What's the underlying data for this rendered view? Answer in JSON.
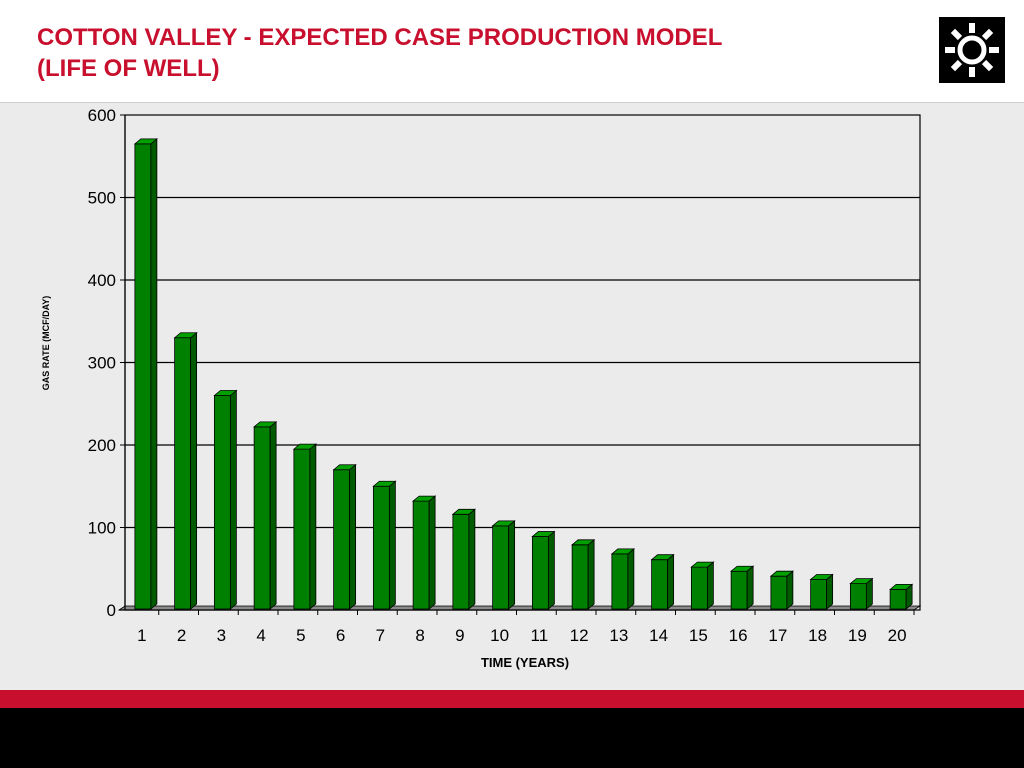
{
  "header": {
    "title_line1": "COTTON VALLEY - EXPECTED CASE PRODUCTION MODEL",
    "title_line2": "(LIFE OF WELL)",
    "logo_icon": "sun-gear-icon"
  },
  "colors": {
    "title": "#c8102e",
    "bar_front": "#008000",
    "bar_side": "#005a00",
    "bar_top": "#00a000",
    "panel_bg": "#ebebeb",
    "red_band": "#c8102e",
    "black_band": "#000000"
  },
  "chart_data": {
    "type": "bar",
    "categories": [
      "1",
      "2",
      "3",
      "4",
      "5",
      "6",
      "7",
      "8",
      "9",
      "10",
      "11",
      "12",
      "13",
      "14",
      "15",
      "16",
      "17",
      "18",
      "19",
      "20"
    ],
    "values": [
      565,
      330,
      260,
      222,
      195,
      170,
      150,
      132,
      116,
      102,
      89,
      79,
      68,
      61,
      52,
      47,
      41,
      37,
      32,
      25
    ],
    "xlabel": "TIME (YEARS)",
    "ylabel": "GAS RATE (MCF/DAY)",
    "ylim": [
      0,
      600
    ],
    "yticks": [
      0,
      100,
      200,
      300,
      400,
      500,
      600
    ],
    "grid": true,
    "legend": "none"
  }
}
